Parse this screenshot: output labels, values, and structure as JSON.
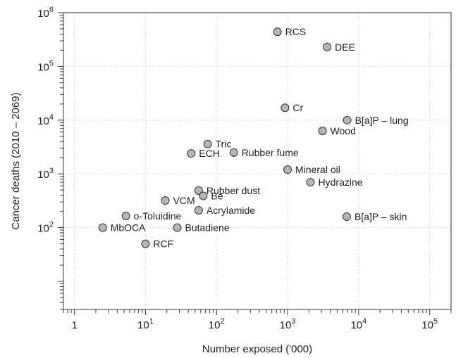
{
  "chart_data": {
    "type": "scatter",
    "title": "",
    "xlabel": "Number exposed ('000)",
    "ylabel": "Cancer deaths (2010 – 2069)",
    "xscale": "log",
    "yscale": "log",
    "xlim": [
      0.7,
      200000
    ],
    "ylim": [
      3,
      1000000
    ],
    "grid": true,
    "x_ticks": [
      {
        "value": 1,
        "base": "1",
        "exp": ""
      },
      {
        "value": 10,
        "base": "10",
        "exp": "1"
      },
      {
        "value": 100,
        "base": "10",
        "exp": "2"
      },
      {
        "value": 1000,
        "base": "10",
        "exp": "3"
      },
      {
        "value": 10000,
        "base": "10",
        "exp": "4"
      },
      {
        "value": 100000,
        "base": "10",
        "exp": "5"
      }
    ],
    "y_ticks": [
      {
        "value": 100,
        "base": "10",
        "exp": "2"
      },
      {
        "value": 1000,
        "base": "10",
        "exp": "3"
      },
      {
        "value": 10000,
        "base": "10",
        "exp": "4"
      },
      {
        "value": 100000,
        "base": "10",
        "exp": "5"
      },
      {
        "value": 1000000,
        "base": "10",
        "exp": "6"
      }
    ],
    "points": [
      {
        "label": "RCS",
        "x": 720,
        "y": 440000
      },
      {
        "label": "DEE",
        "x": 3600,
        "y": 230000
      },
      {
        "label": "Cr",
        "x": 920,
        "y": 17000
      },
      {
        "label": "B[a]P – lung",
        "x": 6900,
        "y": 10000
      },
      {
        "label": "Wood",
        "x": 3100,
        "y": 6300
      },
      {
        "label": "Tric",
        "x": 75,
        "y": 3600
      },
      {
        "label": "ECH",
        "x": 44,
        "y": 2400
      },
      {
        "label": "Rubber fume",
        "x": 175,
        "y": 2500
      },
      {
        "label": "Mineral oil",
        "x": 1000,
        "y": 1200
      },
      {
        "label": "Hydrazine",
        "x": 2100,
        "y": 700
      },
      {
        "label": "Rubber dust",
        "x": 56,
        "y": 490
      },
      {
        "label": "Be",
        "x": 65,
        "y": 390
      },
      {
        "label": "VCM",
        "x": 19,
        "y": 320
      },
      {
        "label": "Acrylamide",
        "x": 56,
        "y": 210
      },
      {
        "label": "o-Toluidine",
        "x": 5.3,
        "y": 165
      },
      {
        "label": "B[a]P – skin",
        "x": 6800,
        "y": 160
      },
      {
        "label": "MbOCA",
        "x": 2.5,
        "y": 100
      },
      {
        "label": "Butadiene",
        "x": 28,
        "y": 100
      },
      {
        "label": "RCF",
        "x": 10,
        "y": 50
      }
    ],
    "marker_fill": "#b5b5b5",
    "marker_stroke": "#333333"
  }
}
